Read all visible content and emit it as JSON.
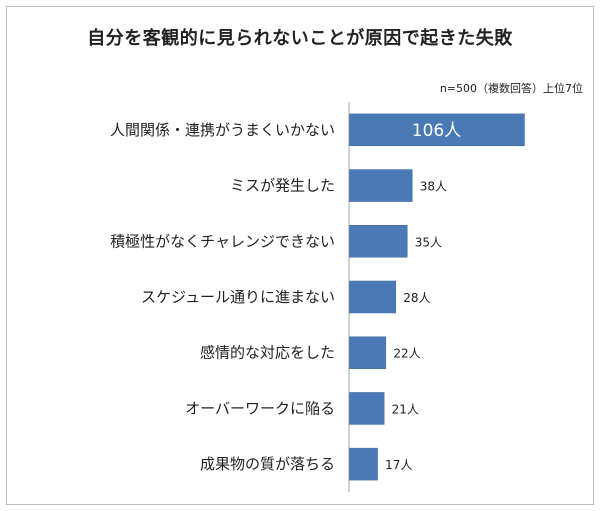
{
  "title": "自分を客観的に見られないことが原因で起きた失敗",
  "subtitle": "n=500（複数回答）上位7位",
  "colors": {
    "bar": "#4a7ab5",
    "bar_stroke": "#3f6a9f",
    "axis": "#a6a6a6"
  },
  "chart_data": {
    "type": "bar",
    "orientation": "horizontal",
    "categories": [
      "人間関係・連携がうまくいかない",
      "ミスが発生した",
      "積極性がなくチャレンジできない",
      "スケジュール通りに進まない",
      "感情的な対応をした",
      "オーバーワークに陥る",
      "成果物の質が落ちる"
    ],
    "values": [
      106,
      38,
      35,
      28,
      22,
      21,
      17
    ],
    "value_labels": [
      "106人",
      "38人",
      "35人",
      "28人",
      "22人",
      "21人",
      "17人"
    ],
    "xlim": [
      0,
      110
    ],
    "grid": false,
    "legend": "none"
  }
}
